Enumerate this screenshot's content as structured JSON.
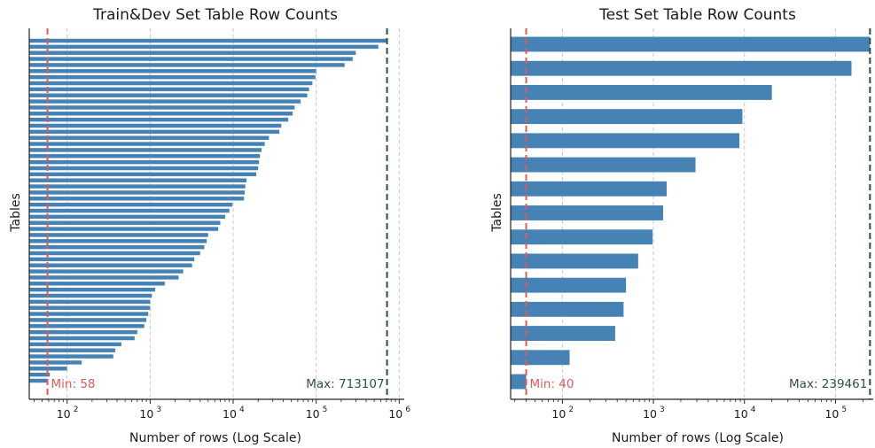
{
  "chart_data": [
    {
      "type": "bar",
      "orientation": "horizontal",
      "title": "Train&Dev Set Table Row Counts",
      "xlabel": "Number of rows (Log Scale)",
      "ylabel": "Tables",
      "xscale": "log",
      "xlim": [
        35,
        1150000
      ],
      "xticks": [
        "10^2",
        "10^3",
        "10^4",
        "10^5",
        "10^6"
      ],
      "grid": "x dashed",
      "bar_color": "#4682b4",
      "values": [
        713107,
        560000,
        300000,
        275000,
        220000,
        100000,
        98000,
        90000,
        82000,
        78000,
        65000,
        55000,
        52000,
        46000,
        38000,
        36000,
        27000,
        24000,
        22000,
        21000,
        20500,
        20000,
        19000,
        14500,
        14000,
        13800,
        13500,
        9800,
        9000,
        8000,
        7000,
        6600,
        5000,
        4800,
        4500,
        4000,
        3400,
        3200,
        2500,
        2200,
        1500,
        1150,
        1050,
        1000,
        1000,
        950,
        900,
        850,
        700,
        650,
        450,
        380,
        360,
        150,
        100,
        62,
        58
      ],
      "min_line": {
        "value": 58,
        "label": "Min: 58",
        "color": "#e05a5a"
      },
      "max_line": {
        "value": 713107,
        "label": "Max: 713107",
        "color": "#2f4f4f"
      }
    },
    {
      "type": "bar",
      "orientation": "horizontal",
      "title": "Test Set Table Row Counts",
      "xlabel": "Number of rows (Log Scale)",
      "ylabel": "Tables",
      "xscale": "log",
      "xlim": [
        27,
        260000
      ],
      "xticks": [
        "10^2",
        "10^3",
        "10^4",
        "10^5"
      ],
      "grid": "x dashed",
      "bar_color": "#4682b4",
      "values": [
        239461,
        150000,
        20000,
        9500,
        8800,
        2900,
        1400,
        1280,
        980,
        680,
        500,
        470,
        380,
        120,
        40
      ],
      "min_line": {
        "value": 40,
        "label": "Min: 40",
        "color": "#e05a5a"
      },
      "max_line": {
        "value": 239461,
        "label": "Max: 239461",
        "color": "#2f4f4f"
      }
    }
  ]
}
